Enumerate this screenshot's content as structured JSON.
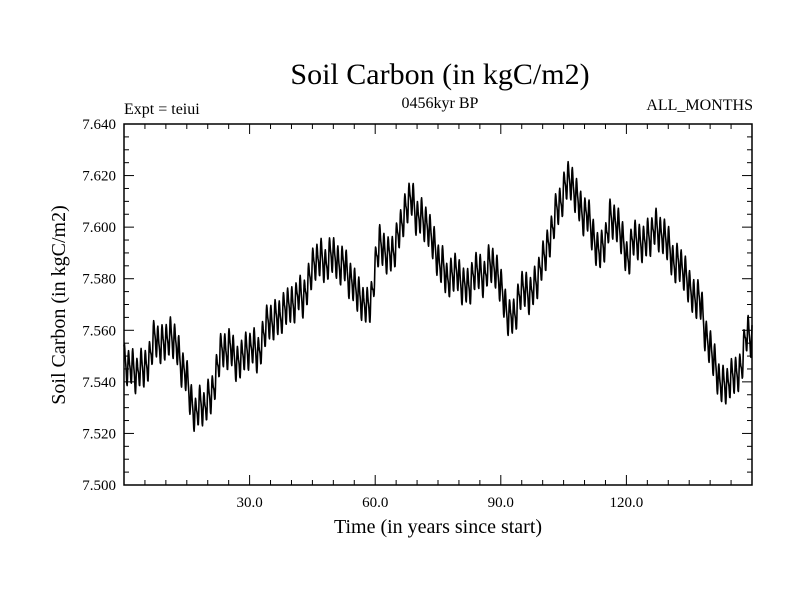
{
  "chart_data": {
    "type": "line",
    "title": "Soil Carbon (in kgC/m2)",
    "subtitle": "0456kyr BP",
    "left_label": "Expt = teiui",
    "right_label": "ALL_MONTHS",
    "xlabel": "Time (in years since start)",
    "ylabel": "Soil Carbon (in kgC/m2)",
    "xlim": [
      0,
      150
    ],
    "ylim": [
      7.5,
      7.64
    ],
    "xticks": [
      30,
      60,
      90,
      120
    ],
    "xtick_labels": [
      "30.0",
      "60.0",
      "90.0",
      "120.0"
    ],
    "yticks": [
      7.5,
      7.52,
      7.54,
      7.56,
      7.58,
      7.6,
      7.62,
      7.64
    ],
    "ytick_labels": [
      "7.500",
      "7.520",
      "7.540",
      "7.560",
      "7.580",
      "7.600",
      "7.620",
      "7.640"
    ],
    "series": [
      {
        "name": "Soil Carbon",
        "color": "#000000",
        "seasonal_amplitude": 0.006,
        "trend": [
          [
            0,
            7.549
          ],
          [
            3,
            7.544
          ],
          [
            6,
            7.548
          ],
          [
            9,
            7.556
          ],
          [
            11,
            7.56
          ],
          [
            13,
            7.552
          ],
          [
            15,
            7.54
          ],
          [
            17,
            7.526
          ],
          [
            19,
            7.528
          ],
          [
            21,
            7.54
          ],
          [
            23,
            7.55
          ],
          [
            25,
            7.554
          ],
          [
            27,
            7.546
          ],
          [
            29,
            7.55
          ],
          [
            32,
            7.556
          ],
          [
            35,
            7.562
          ],
          [
            38,
            7.566
          ],
          [
            41,
            7.572
          ],
          [
            44,
            7.58
          ],
          [
            47,
            7.586
          ],
          [
            50,
            7.588
          ],
          [
            53,
            7.586
          ],
          [
            55,
            7.578
          ],
          [
            57,
            7.566
          ],
          [
            58,
            7.566
          ],
          [
            60,
            7.584
          ],
          [
            61,
            7.594
          ],
          [
            63,
            7.59
          ],
          [
            65,
            7.594
          ],
          [
            67,
            7.604
          ],
          [
            69,
            7.608
          ],
          [
            71,
            7.606
          ],
          [
            73,
            7.598
          ],
          [
            75,
            7.59
          ],
          [
            77,
            7.578
          ],
          [
            79,
            7.58
          ],
          [
            82,
            7.58
          ],
          [
            85,
            7.582
          ],
          [
            88,
            7.584
          ],
          [
            90,
            7.576
          ],
          [
            92,
            7.566
          ],
          [
            94,
            7.572
          ],
          [
            96,
            7.574
          ],
          [
            98,
            7.576
          ],
          [
            100,
            7.584
          ],
          [
            102,
            7.6
          ],
          [
            104,
            7.612
          ],
          [
            106,
            7.616
          ],
          [
            108,
            7.612
          ],
          [
            110,
            7.604
          ],
          [
            112,
            7.598
          ],
          [
            114,
            7.592
          ],
          [
            116,
            7.602
          ],
          [
            118,
            7.598
          ],
          [
            120,
            7.59
          ],
          [
            122,
            7.594
          ],
          [
            125,
            7.598
          ],
          [
            128,
            7.596
          ],
          [
            131,
            7.59
          ],
          [
            134,
            7.582
          ],
          [
            137,
            7.572
          ],
          [
            139,
            7.556
          ],
          [
            141,
            7.548
          ],
          [
            143,
            7.54
          ],
          [
            145,
            7.54
          ],
          [
            147,
            7.546
          ],
          [
            149,
            7.555
          ]
        ],
        "wobble": [
          [
            [
              2.0,
              3.3,
              0.4
            ],
            [
              5.3,
              0.9,
              1.1
            ],
            [
              11.2,
              0.4,
              0.6
            ],
            [
              7.6,
              2.1,
              1.7
            ],
            [
              3.7,
              5.6,
              0.2
            ]
          ],
          [
            0.0018,
            0.0012,
            0.0008,
            0.0012,
            0.0016
          ]
        ]
      }
    ]
  }
}
